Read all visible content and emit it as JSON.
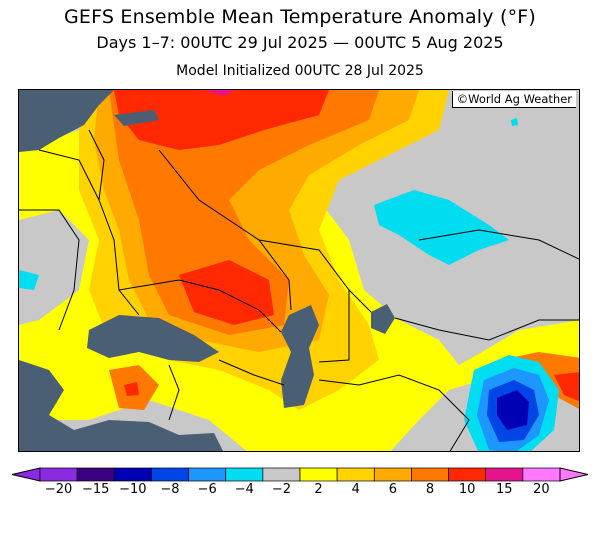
{
  "header": {
    "title": "GEFS Ensemble Mean Temperature Anomaly (°F)",
    "subtitle": "Days 1–7: 00UTC 29 Jul 2025 — 00UTC 5 Aug 2025",
    "init_line": "Model Initialized 00UTC 28 Jul 2025"
  },
  "map": {
    "credit": "©World Ag Weather",
    "water_color": "#4a5f73",
    "neutral_color": "#c8c8c8"
  },
  "legend": {
    "colors": [
      "#8a2be2",
      "#3c0082",
      "#0000b4",
      "#0046e6",
      "#1e96ff",
      "#00dcf0",
      "#c8c8c8",
      "#ffff00",
      "#ffd200",
      "#ffaa00",
      "#ff7800",
      "#ff2800",
      "#e6148c",
      "#ff78ff"
    ],
    "ticks": [
      "−20",
      "−15",
      "−10",
      "−8",
      "−6",
      "−4",
      "−2",
      "2",
      "4",
      "6",
      "8",
      "10",
      "15",
      "20"
    ]
  }
}
